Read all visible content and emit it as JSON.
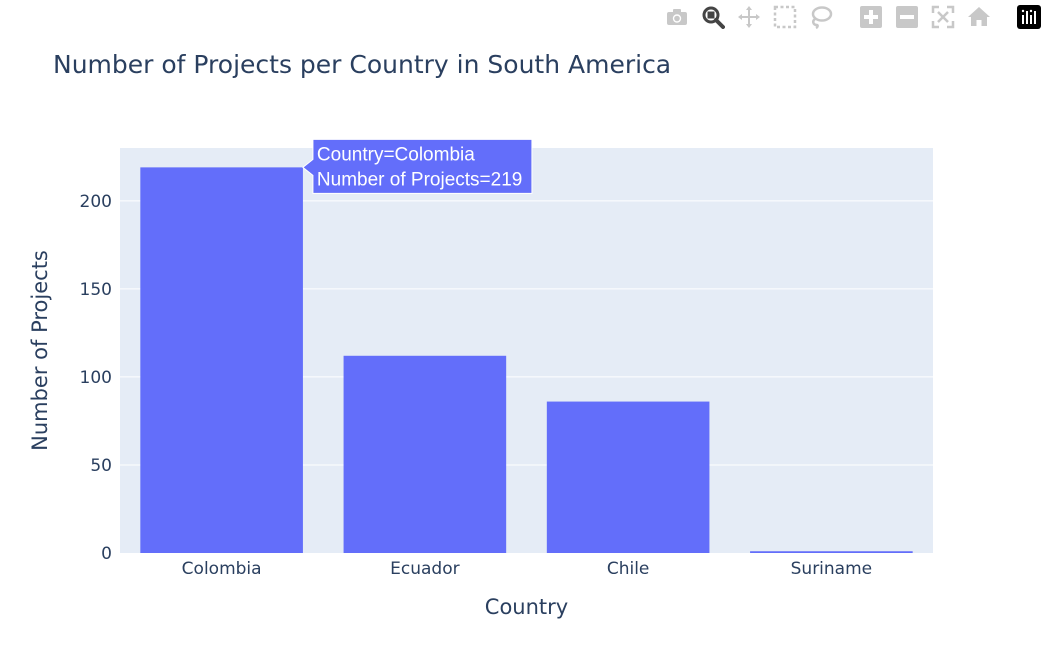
{
  "modebar": {
    "buttons": [
      {
        "name": "download-plot-button",
        "icon": "camera-icon",
        "active": false
      },
      {
        "name": "zoom-button",
        "icon": "zoom-icon",
        "active": true
      },
      {
        "name": "pan-button",
        "icon": "pan-icon",
        "active": false
      },
      {
        "name": "box-select-button",
        "icon": "box-select-icon",
        "active": false
      },
      {
        "name": "lasso-select-button",
        "icon": "lasso-icon",
        "active": false
      },
      {
        "name": "zoom-in-button",
        "icon": "zoom-in-icon",
        "active": false
      },
      {
        "name": "zoom-out-button",
        "icon": "zoom-out-icon",
        "active": false
      },
      {
        "name": "autoscale-button",
        "icon": "autoscale-icon",
        "active": false
      },
      {
        "name": "reset-axes-button",
        "icon": "home-icon",
        "active": false
      },
      {
        "name": "plotly-logo-button",
        "icon": "plotly-logo-icon",
        "active": false
      }
    ]
  },
  "chart_data": {
    "type": "bar",
    "title": "Number of Projects per Country in South America",
    "xlabel": "Country",
    "ylabel": "Number of Projects",
    "categories": [
      "Colombia",
      "Ecuador",
      "Chile",
      "Suriname"
    ],
    "values": [
      219,
      112,
      86,
      1
    ],
    "ylim": [
      0,
      230
    ],
    "yticks": [
      0,
      50,
      100,
      150,
      200
    ],
    "grid": true,
    "bar_color": "#636efa",
    "plot_bg": "#e5ecf6",
    "hover": {
      "category_index": 0,
      "lines": [
        "Country=Colombia",
        "Number of Projects=219"
      ]
    }
  }
}
